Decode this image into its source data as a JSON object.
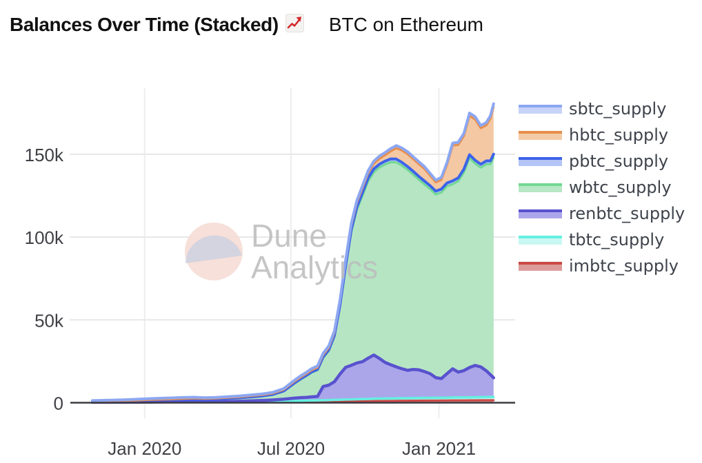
{
  "header": {
    "title": "Balances Over Time (Stacked)",
    "emoji_icon": "chart-increasing-emoji",
    "subtitle": "BTC on Ethereum"
  },
  "watermark": {
    "line1": "Dune",
    "line2": "Analytics"
  },
  "colors": {
    "axis_line": "#3a3a42",
    "grid_h": "#e7e7e7",
    "grid_v": "#ededed",
    "axis_label": "#3f4045",
    "watermark_text": "#bcbcbc",
    "watermark_pie_top": "#f5ddd5",
    "watermark_pie_bottom": "#d2d2e0",
    "emoji_line": "#d62828"
  },
  "chart_data": {
    "type": "area",
    "stacked": true,
    "title": "Balances Over Time (Stacked)",
    "subtitle": "BTC on Ethereum",
    "unit": "BTC",
    "values_scale": "thousands",
    "legend_position": "right",
    "grid": true,
    "y": {
      "range": [
        0,
        190
      ],
      "ticks": [
        {
          "label": "150k",
          "value": 150
        },
        {
          "label": "100k",
          "value": 100
        },
        {
          "label": "50k",
          "value": 50
        },
        {
          "label": "0",
          "value": 0
        }
      ]
    },
    "x": {
      "ticks": [
        {
          "label": "Jan 2020",
          "date": "2020-01-01"
        },
        {
          "label": "Jul 2020",
          "date": "2020-07-01"
        },
        {
          "label": "Jan 2021",
          "date": "2021-01-01"
        }
      ],
      "dates": [
        "2019-10-28",
        "2019-11-11",
        "2019-11-25",
        "2019-12-09",
        "2019-12-23",
        "2020-01-06",
        "2020-01-20",
        "2020-02-03",
        "2020-02-17",
        "2020-03-02",
        "2020-03-16",
        "2020-03-30",
        "2020-04-13",
        "2020-04-27",
        "2020-05-11",
        "2020-05-25",
        "2020-06-08",
        "2020-06-22",
        "2020-07-06",
        "2020-07-13",
        "2020-07-20",
        "2020-07-27",
        "2020-08-03",
        "2020-08-10",
        "2020-08-17",
        "2020-08-24",
        "2020-08-31",
        "2020-09-07",
        "2020-09-14",
        "2020-09-21",
        "2020-09-28",
        "2020-10-05",
        "2020-10-12",
        "2020-10-19",
        "2020-10-26",
        "2020-11-02",
        "2020-11-09",
        "2020-11-16",
        "2020-11-23",
        "2020-11-30",
        "2020-12-07",
        "2020-12-14",
        "2020-12-21",
        "2020-12-28",
        "2021-01-04",
        "2021-01-11",
        "2021-01-18",
        "2021-01-25",
        "2021-02-01",
        "2021-02-08",
        "2021-02-15",
        "2021-02-22",
        "2021-03-01",
        "2021-03-06",
        "2021-03-10"
      ]
    },
    "series": [
      {
        "name": "imbtc_supply",
        "line_color": "#cb4845",
        "fill_color": "#d8918e",
        "stroke_width": 3,
        "values": [
          0.13,
          0.14,
          0.15,
          0.16,
          0.17,
          0.18,
          0.19,
          0.2,
          0.22,
          0.24,
          0.22,
          0.23,
          0.25,
          0.27,
          0.3,
          0.32,
          0.35,
          0.38,
          0.4,
          0.42,
          0.45,
          0.48,
          0.5,
          0.55,
          0.6,
          0.65,
          0.7,
          0.75,
          0.8,
          0.85,
          0.9,
          0.95,
          1.0,
          1.05,
          1.1,
          1.1,
          1.15,
          1.2,
          1.2,
          1.25,
          1.25,
          1.3,
          1.3,
          1.3,
          1.35,
          1.35,
          1.4,
          1.4,
          1.4,
          1.45,
          1.45,
          1.5,
          1.5,
          1.5,
          1.5
        ]
      },
      {
        "name": "tbtc_supply",
        "line_color": "#65efe1",
        "fill_color": "#c2f7f1",
        "stroke_width": 3.5,
        "values": [
          0.1,
          0.1,
          0.11,
          0.12,
          0.13,
          0.14,
          0.15,
          0.16,
          0.17,
          0.18,
          0.18,
          0.19,
          0.2,
          0.22,
          0.25,
          0.3,
          0.4,
          0.55,
          0.7,
          0.75,
          0.8,
          0.85,
          0.9,
          0.95,
          1.0,
          1.05,
          1.1,
          1.15,
          1.2,
          1.25,
          1.3,
          1.35,
          1.4,
          1.45,
          1.45,
          1.5,
          1.5,
          1.5,
          1.55,
          1.55,
          1.6,
          1.6,
          1.65,
          1.65,
          1.7,
          1.7,
          1.75,
          1.75,
          1.8,
          1.8,
          1.85,
          1.85,
          1.9,
          1.9,
          1.9
        ]
      },
      {
        "name": "renbtc_supply",
        "line_color": "#5952ce",
        "fill_color": "#aba6ea",
        "stroke_width": 4.5,
        "values": [
          0.03,
          0.04,
          0.05,
          0.06,
          0.08,
          0.1,
          0.12,
          0.14,
          0.16,
          0.18,
          0.2,
          0.25,
          0.3,
          0.4,
          0.55,
          0.7,
          0.9,
          1.2,
          1.7,
          1.9,
          2.0,
          2.2,
          2.4,
          8.3,
          9.0,
          11.0,
          15.5,
          19.5,
          20.6,
          21.9,
          22.6,
          24.6,
          26.4,
          24.2,
          21.8,
          20.3,
          19.0,
          17.8,
          16.8,
          17.3,
          17.0,
          15.9,
          14.6,
          12.2,
          11.5,
          14.5,
          17.3,
          15.3,
          16.2,
          18.0,
          19.2,
          18.3,
          15.8,
          13.5,
          11.6
        ]
      },
      {
        "name": "wbtc_supply",
        "line_color": "#71d893",
        "fill_color": "#b6e5c3",
        "stroke_width": 3,
        "values": [
          0.6,
          0.68,
          0.78,
          0.9,
          1.05,
          1.2,
          1.3,
          1.35,
          1.4,
          1.5,
          1.35,
          1.45,
          1.7,
          1.9,
          2.2,
          2.5,
          3.1,
          4.7,
          9.0,
          11.0,
          12.8,
          14.7,
          15.8,
          17.2,
          20.6,
          27.2,
          40.8,
          60.2,
          80.5,
          92.5,
          100.3,
          106.8,
          110.4,
          115.3,
          119.5,
          122.3,
          123.5,
          122.6,
          121.0,
          117.6,
          114.8,
          113.0,
          111.5,
          110.6,
          112.4,
          113.1,
          111.5,
          115.3,
          119.6,
          126.5,
          121.9,
          120.3,
          124.8,
          127.1,
          133.0
        ]
      },
      {
        "name": "pbtc_supply",
        "line_color": "#3c63e9",
        "fill_color": "#b4c4f7",
        "stroke_width": 4,
        "values": [
          0,
          0,
          0,
          0,
          0,
          0.05,
          0.05,
          0.05,
          0.06,
          0.07,
          0.07,
          0.08,
          0.1,
          0.12,
          0.15,
          0.18,
          0.2,
          0.25,
          0.3,
          0.35,
          0.4,
          0.45,
          0.5,
          0.6,
          0.7,
          0.8,
          1.0,
          1.3,
          1.6,
          1.8,
          1.9,
          2.0,
          2.0,
          2.0,
          2.0,
          2.0,
          2.0,
          2.0,
          2.0,
          2.0,
          2.0,
          2.0,
          2.0,
          2.0,
          2.0,
          2.0,
          2.0,
          2.0,
          2.0,
          2.0,
          2.0,
          2.0,
          2.0,
          2.0,
          2.1
        ]
      },
      {
        "name": "hbtc_supply",
        "line_color": "#e78e4d",
        "fill_color": "#f3c8a3",
        "stroke_width": 3,
        "values": [
          0,
          0,
          0,
          0,
          0,
          0.05,
          0.1,
          0.2,
          0.3,
          0.4,
          0.35,
          0.4,
          0.45,
          0.5,
          0.55,
          0.6,
          0.62,
          0.75,
          0.9,
          0.95,
          1.0,
          1.05,
          1.1,
          1.2,
          1.3,
          1.5,
          1.8,
          2.1,
          2.3,
          2.5,
          2.7,
          2.9,
          3.1,
          3.3,
          3.6,
          4.6,
          6.5,
          7.2,
          7.5,
          7.4,
          7.4,
          7.3,
          6.1,
          5.3,
          5.6,
          10.8,
          21.3,
          19.9,
          20.0,
          23.5,
          24.6,
          21.8,
          21.5,
          25.5,
          28.4
        ]
      },
      {
        "name": "sbtc_supply",
        "line_color": "#8ca7f2",
        "fill_color": "#d5defb",
        "stroke_width": 4,
        "values": [
          0.45,
          0.5,
          0.55,
          0.6,
          0.7,
          0.75,
          0.8,
          0.8,
          0.85,
          0.75,
          0.65,
          0.62,
          0.62,
          0.61,
          0.63,
          0.63,
          0.65,
          0.7,
          0.8,
          0.85,
          0.9,
          0.95,
          1.0,
          1.05,
          1.1,
          1.15,
          1.2,
          1.3,
          1.35,
          1.4,
          1.45,
          1.5,
          1.55,
          1.6,
          1.6,
          1.65,
          1.65,
          1.5,
          1.45,
          1.4,
          1.45,
          1.4,
          1.35,
          1.35,
          1.45,
          1.5,
          1.55,
          1.6,
          1.6,
          1.65,
          1.7,
          1.65,
          1.7,
          1.8,
          2.0
        ]
      }
    ],
    "legend_swatch_fills": {
      "sbtc_supply": "#c8d3f9",
      "hbtc_supply": "#f4cba8",
      "pbtc_supply": "#b4c4f7",
      "wbtc_supply": "#b7e7c5",
      "renbtc_supply": "#aba6ea",
      "tbtc_supply": "#c9f8f3",
      "imbtc_supply": "#dc9b99"
    }
  }
}
